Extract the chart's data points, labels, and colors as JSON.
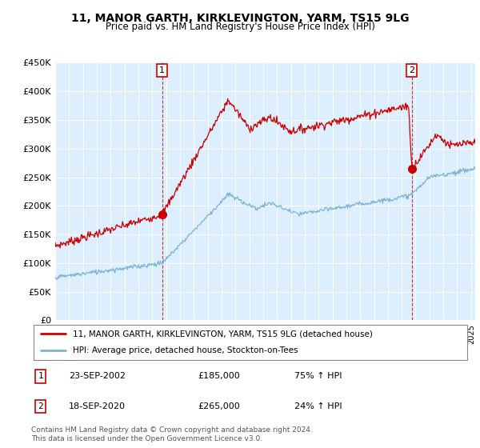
{
  "title": "11, MANOR GARTH, KIRKLEVINGTON, YARM, TS15 9LG",
  "subtitle": "Price paid vs. HM Land Registry's House Price Index (HPI)",
  "legend_line1": "11, MANOR GARTH, KIRKLEVINGTON, YARM, TS15 9LG (detached house)",
  "legend_line2": "HPI: Average price, detached house, Stockton-on-Tees",
  "transaction1_label": "1",
  "transaction1_date": "23-SEP-2002",
  "transaction1_price": "£185,000",
  "transaction1_hpi": "75% ↑ HPI",
  "transaction2_label": "2",
  "transaction2_date": "18-SEP-2020",
  "transaction2_price": "£265,000",
  "transaction2_hpi": "24% ↑ HPI",
  "footnote": "Contains HM Land Registry data © Crown copyright and database right 2024.\nThis data is licensed under the Open Government Licence v3.0.",
  "red_color": "#cc0000",
  "blue_color": "#7ab3d4",
  "chart_bg_color": "#ddeeff",
  "marker_box_color": "#cc0000",
  "grid_color": "#ffffff",
  "ylim": [
    0,
    450000
  ],
  "yticks": [
    0,
    50000,
    100000,
    150000,
    200000,
    250000,
    300000,
    350000,
    400000,
    450000
  ],
  "ytick_labels": [
    "£0",
    "£50K",
    "£100K",
    "£150K",
    "£200K",
    "£250K",
    "£300K",
    "£350K",
    "£400K",
    "£450K"
  ],
  "transaction1_x": 2002.72,
  "transaction1_y": 185000,
  "transaction2_x": 2020.72,
  "transaction2_y": 265000,
  "xlim_left": 1995,
  "xlim_right": 2025.3
}
